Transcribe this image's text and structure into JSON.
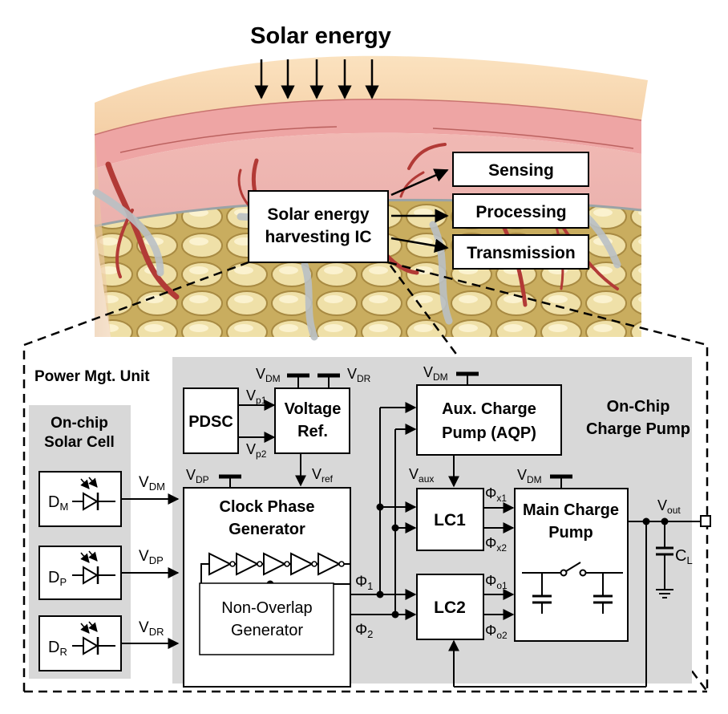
{
  "top": {
    "title": "Solar energy",
    "ic_line1": "Solar energy",
    "ic_line2": "harvesting IC",
    "outputs": [
      "Sensing",
      "Processing",
      "Transmission"
    ]
  },
  "pmu": {
    "title": "Power Mgt. Unit",
    "solar_cell": {
      "title1": "On-chip",
      "title2": "Solar Cell",
      "diodes": [
        {
          "d": "D",
          "sub": "M",
          "out": "V",
          "out_sub": "DM"
        },
        {
          "d": "D",
          "sub": "P",
          "out": "V",
          "out_sub": "DP"
        },
        {
          "d": "D",
          "sub": "R",
          "out": "V",
          "out_sub": "DR"
        }
      ]
    },
    "pdsc": "PDSC",
    "vp1": {
      "v": "V",
      "sub": "p1"
    },
    "vp2": {
      "v": "V",
      "sub": "p2"
    },
    "vref_block": {
      "line1": "Voltage",
      "line2": "Ref."
    },
    "vdm": {
      "v": "V",
      "sub": "DM"
    },
    "vdr": {
      "v": "V",
      "sub": "DR"
    },
    "vdp": {
      "v": "V",
      "sub": "DP"
    },
    "vref": {
      "v": "V",
      "sub": "ref"
    },
    "cpg": {
      "line1": "Clock Phase",
      "line2": "Generator"
    },
    "nog": {
      "line1": "Non-Overlap",
      "line2": "Generator"
    },
    "phi1": {
      "v": "Φ",
      "sub": "1"
    },
    "phi2": {
      "v": "Φ",
      "sub": "2"
    },
    "aqp": {
      "line1": "Aux. Charge",
      "line2": "Pump (AQP)"
    },
    "vaux": {
      "v": "V",
      "sub": "aux"
    },
    "lc1": "LC1",
    "lc2": "LC2",
    "phx1": {
      "v": "Φ",
      "sub": "x1"
    },
    "phx2": {
      "v": "Φ",
      "sub": "x2"
    },
    "pho1": {
      "v": "Φ",
      "sub": "o1"
    },
    "pho2": {
      "v": "Φ",
      "sub": "o2"
    },
    "mcp": {
      "line1": "Main Charge",
      "line2": "Pump"
    },
    "occp": {
      "line1": "On-Chip",
      "line2": "Charge Pump"
    },
    "vout": {
      "v": "V",
      "sub": "out"
    },
    "cl": {
      "v": "C",
      "sub": "L"
    }
  }
}
